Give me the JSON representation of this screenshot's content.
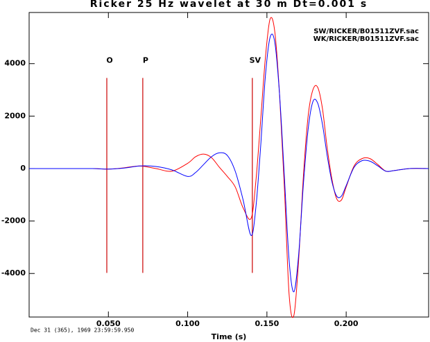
{
  "chart_data": {
    "type": "line",
    "title": "Ricker 25 Hz wavelet at 30 m Dt=0.001 s",
    "x_label": "Time (s)",
    "footnote": "Dec 31 (365), 1969 23:59:59.950",
    "x": [
      0,
      0.02,
      0.04,
      0.05,
      0.06,
      0.07,
      0.08,
      0.09,
      0.1,
      0.105,
      0.11,
      0.115,
      0.12,
      0.125,
      0.13,
      0.135,
      0.14,
      0.143,
      0.146,
      0.149,
      0.152,
      0.155,
      0.158,
      0.161,
      0.164,
      0.167,
      0.17,
      0.173,
      0.176,
      0.179,
      0.182,
      0.185,
      0.188,
      0.191,
      0.194,
      0.197,
      0.2,
      0.205,
      0.21,
      0.215,
      0.22,
      0.225,
      0.23,
      0.24,
      0.252
    ],
    "series": [
      {
        "name": "SW/RICKER/B01511ZVF.sac",
        "color": "#ff0000",
        "values": [
          0,
          0,
          0,
          -20,
          30,
          100,
          0,
          -100,
          200,
          450,
          550,
          420,
          50,
          -300,
          -700,
          -1500,
          -1900,
          -500,
          1800,
          4200,
          5700,
          5200,
          2800,
          -700,
          -4800,
          -5600,
          -3500,
          -300,
          2000,
          3000,
          3100,
          2300,
          800,
          -400,
          -1150,
          -1200,
          -700,
          100,
          380,
          380,
          150,
          -100,
          -80,
          0,
          0
        ]
      },
      {
        "name": "WK/RICKER/B01511ZVF.sac",
        "color": "#0000ff",
        "values": [
          0,
          0,
          0,
          -20,
          20,
          100,
          80,
          -50,
          -300,
          -150,
          150,
          450,
          600,
          500,
          -100,
          -1200,
          -2550,
          -1500,
          800,
          3500,
          5000,
          4800,
          2800,
          -300,
          -3500,
          -4700,
          -3300,
          -600,
          1500,
          2550,
          2500,
          1700,
          500,
          -500,
          -1050,
          -1050,
          -650,
          50,
          300,
          280,
          100,
          -100,
          -80,
          0,
          0
        ]
      }
    ],
    "markers": [
      {
        "label": "O",
        "x": 0.049
      },
      {
        "label": "P",
        "x": 0.0717
      },
      {
        "label": "SV",
        "x": 0.1408
      }
    ],
    "marker_color": "#cc0000",
    "xlim": [
      0,
      0.252
    ],
    "ylim": [
      -5660,
      5950
    ],
    "xticks": [
      {
        "value": 0.05,
        "label": "0.050"
      },
      {
        "value": 0.1,
        "label": "0.100"
      },
      {
        "value": 0.15,
        "label": "0.150"
      },
      {
        "value": 0.2,
        "label": "0.200"
      }
    ],
    "yticks": [
      -4000,
      -2000,
      0,
      2000,
      4000
    ],
    "grid": false
  }
}
